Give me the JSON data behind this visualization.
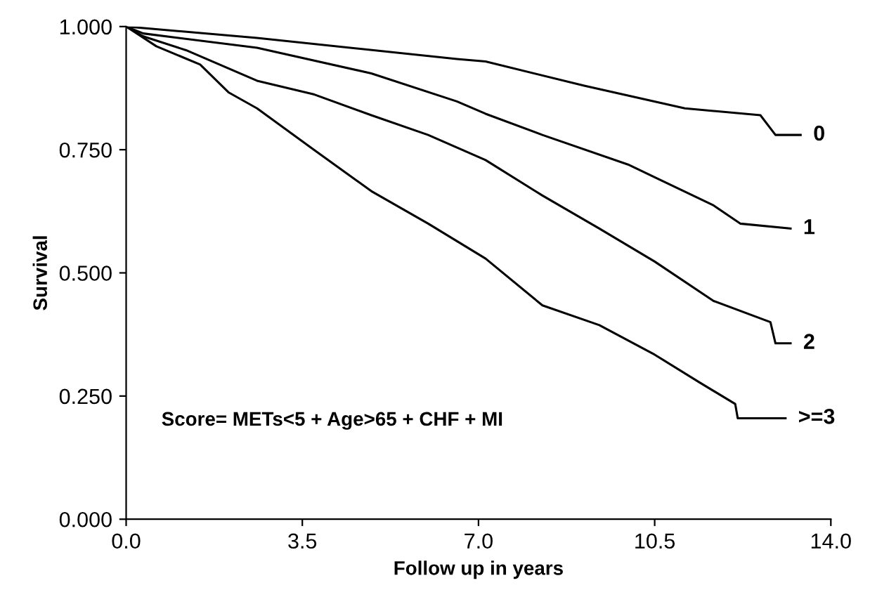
{
  "chart_data": {
    "type": "line",
    "xlabel": "Follow up in years",
    "ylabel": "Survival",
    "xlim": [
      0,
      14
    ],
    "ylim": [
      0,
      1
    ],
    "xticks": [
      {
        "value": 0,
        "label": "0.0"
      },
      {
        "value": 3.5,
        "label": "3.5"
      },
      {
        "value": 7,
        "label": "7.0"
      },
      {
        "value": 10.5,
        "label": "10.5"
      },
      {
        "value": 14,
        "label": "14.0"
      }
    ],
    "yticks": [
      {
        "value": 0,
        "label": "0.000"
      },
      {
        "value": 0.25,
        "label": "0.250"
      },
      {
        "value": 0.5,
        "label": "0.500"
      },
      {
        "value": 0.75,
        "label": "0.750"
      },
      {
        "value": 1,
        "label": "1.000"
      }
    ],
    "grid": false,
    "legend": false,
    "marker": "none",
    "line_style": "solid",
    "series": [
      {
        "name": "0",
        "color": "#000000",
        "x": [
          0,
          2.6,
          6.57,
          7.14,
          9.1,
          11.1,
          12.6,
          12.9,
          13.4
        ],
        "values": [
          1,
          0.977,
          0.934,
          0.929,
          0.88,
          0.834,
          0.82,
          0.78,
          0.78
        ]
      },
      {
        "name": "1",
        "color": "#000000",
        "x": [
          0,
          0.34,
          2.6,
          4.87,
          6.57,
          7.14,
          8.27,
          9.97,
          11.67,
          12.2,
          13.2
        ],
        "values": [
          1,
          0.986,
          0.957,
          0.905,
          0.848,
          0.823,
          0.78,
          0.72,
          0.637,
          0.6,
          0.59
        ]
      },
      {
        "name": "2",
        "color": "#000000",
        "x": [
          0,
          0.34,
          1.19,
          2.6,
          3.74,
          4.87,
          6.0,
          7.14,
          8.27,
          9.4,
          10.5,
          11.67,
          12.8,
          12.9,
          13.2
        ],
        "values": [
          1,
          0.98,
          0.952,
          0.89,
          0.862,
          0.82,
          0.78,
          0.729,
          0.657,
          0.59,
          0.523,
          0.443,
          0.4,
          0.357,
          0.357
        ]
      },
      {
        "name": ">=3",
        "color": "#000000",
        "x": [
          0,
          0.6,
          1.47,
          2.04,
          2.6,
          3.74,
          4.87,
          6.0,
          7.14,
          8.27,
          9.4,
          10.5,
          11.4,
          12.1,
          12.15,
          13.1
        ],
        "values": [
          1,
          0.96,
          0.923,
          0.866,
          0.834,
          0.749,
          0.666,
          0.6,
          0.529,
          0.434,
          0.394,
          0.334,
          0.277,
          0.234,
          0.205,
          0.205
        ]
      }
    ],
    "annotations": [
      "Score= METs<5 + Age>65 + CHF + MI"
    ]
  }
}
